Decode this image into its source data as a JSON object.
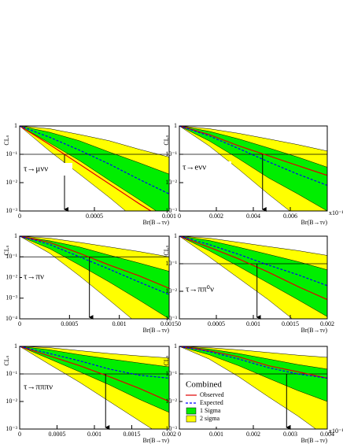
{
  "chart_data": [
    {
      "type": "line",
      "annotation": "τ→μνν",
      "xlabel": "Br(B→τν)",
      "ylabel": "CLₛ",
      "x": [
        0,
        0.0002,
        0.0004,
        0.0006,
        0.0008,
        0.001
      ],
      "xlim": [
        0,
        0.001
      ],
      "xticks": [
        0,
        0.0005,
        0.001
      ],
      "ylim": [
        0.001,
        1
      ],
      "yticks": [
        {
          "value": 0.001,
          "label": "10⁻³"
        },
        {
          "value": 0.01,
          "label": "10⁻²"
        },
        {
          "value": 0.1,
          "label": "10⁻¹"
        },
        1
      ],
      "log_y": true,
      "reference_line": 0.1,
      "limit": 0.0003,
      "bands": [
        {
          "color": "#ffff00",
          "lower": [
            1,
            0.13,
            0.02,
            0.003,
            0.0004,
            6e-05
          ],
          "upper": [
            1,
            0.8,
            0.5,
            0.3,
            0.15,
            0.08
          ]
        },
        {
          "color": "#00ee00",
          "lower": [
            1,
            0.25,
            0.06,
            0.012,
            0.0025,
            0.0005
          ],
          "upper": [
            1,
            0.6,
            0.3,
            0.12,
            0.05,
            0.02
          ]
        }
      ],
      "series": [
        {
          "color": "#e00000",
          "values": [
            1,
            0.22,
            0.045,
            0.009,
            0.0018,
            0.0004
          ]
        },
        {
          "color": "#0000ff",
          "dashed": true,
          "values": [
            1,
            0.4,
            0.14,
            0.045,
            0.013,
            0.004
          ]
        }
      ]
    },
    {
      "type": "line",
      "annotation": "τ→eνν",
      "xlabel": "Br(B→τν)",
      "ylabel": "CLₛ",
      "x_note": "x10⁻¹",
      "x": [
        0,
        0.0016,
        0.0032,
        0.0048,
        0.0064,
        0.008
      ],
      "xlim": [
        0,
        0.008
      ],
      "xticks": [
        0,
        0.002,
        0.004,
        0.006
      ],
      "ylim": [
        0.001,
        1
      ],
      "yticks": [
        {
          "value": 0.001,
          "label": "10⁻³"
        },
        {
          "value": 0.01,
          "label": "10⁻²"
        },
        {
          "value": 0.1,
          "label": "10⁻¹"
        },
        1
      ],
      "log_y": true,
      "reference_line": 0.1,
      "limit": 0.0045,
      "bands": [
        {
          "color": "#ffff00",
          "lower": [
            1,
            0.2,
            0.03,
            0.004,
            0.0006,
            0.0001
          ],
          "upper": [
            1,
            0.8,
            0.55,
            0.35,
            0.22,
            0.13
          ]
        },
        {
          "color": "#00ee00",
          "lower": [
            1,
            0.3,
            0.07,
            0.015,
            0.004,
            0.001
          ],
          "upper": [
            1,
            0.65,
            0.35,
            0.17,
            0.08,
            0.035
          ]
        }
      ],
      "series": [
        {
          "color": "#e00000",
          "values": [
            1,
            0.5,
            0.2,
            0.09,
            0.04,
            0.018
          ]
        },
        {
          "color": "#0000ff",
          "dashed": true,
          "values": [
            1,
            0.45,
            0.16,
            0.055,
            0.02,
            0.008
          ]
        }
      ]
    },
    {
      "type": "line",
      "annotation": "τ→πν",
      "xlabel": "Br(B→τν)",
      "ylabel": "CLₛ",
      "x": [
        0,
        0.0003,
        0.0006,
        0.0009,
        0.0012,
        0.0015
      ],
      "xlim": [
        0,
        0.0015
      ],
      "xticks": [
        0,
        0.0005,
        0.001,
        0.0015
      ],
      "ylim": [
        0.0001,
        1
      ],
      "yticks": [
        {
          "value": 0.0001,
          "label": "10⁻⁴"
        },
        {
          "value": 0.001,
          "label": "10⁻³"
        },
        {
          "value": 0.01,
          "label": "10⁻²"
        },
        {
          "value": 0.1,
          "label": "10⁻¹"
        },
        1
      ],
      "log_y": true,
      "reference_line": 0.1,
      "limit": 0.0007,
      "bands": [
        {
          "color": "#ffff00",
          "lower": [
            1,
            0.15,
            0.012,
            0.0008,
            5e-05,
            3e-06
          ],
          "upper": [
            1,
            0.8,
            0.5,
            0.3,
            0.18,
            0.1
          ]
        },
        {
          "color": "#00ee00",
          "lower": [
            1,
            0.25,
            0.04,
            0.006,
            0.0008,
            0.0001
          ],
          "upper": [
            1,
            0.6,
            0.3,
            0.12,
            0.05,
            0.02
          ]
        }
      ],
      "series": [
        {
          "color": "#e00000",
          "values": [
            1,
            0.5,
            0.15,
            0.04,
            0.012,
            0.003
          ]
        },
        {
          "color": "#0000ff",
          "dashed": true,
          "values": [
            1,
            0.4,
            0.1,
            0.025,
            0.006,
            0.0015
          ]
        }
      ]
    },
    {
      "type": "line",
      "annotation": "τ→ππ⁰ν",
      "xlabel": "Br(B→τν)",
      "ylabel": "CLₛ",
      "x": [
        0,
        0.0004,
        0.0008,
        0.0012,
        0.0016,
        0.002
      ],
      "xlim": [
        0,
        0.002
      ],
      "xticks": [
        0,
        0.0005,
        0.001,
        0.0015,
        0.002
      ],
      "ylim": [
        0.001,
        1
      ],
      "yticks": [
        {
          "value": 0.001,
          "label": "10⁻³"
        },
        {
          "value": 0.01,
          "label": "10⁻²"
        },
        {
          "value": 0.1,
          "label": "10⁻¹"
        },
        1
      ],
      "log_y": true,
      "reference_line": 0.1,
      "limit": 0.00105,
      "bands": [
        {
          "color": "#ffff00",
          "lower": [
            1,
            0.18,
            0.03,
            0.005,
            0.0007,
            0.0001
          ],
          "upper": [
            1,
            0.85,
            0.6,
            0.42,
            0.3,
            0.2
          ]
        },
        {
          "color": "#00ee00",
          "lower": [
            1,
            0.3,
            0.08,
            0.02,
            0.005,
            0.0012
          ],
          "upper": [
            1,
            0.7,
            0.4,
            0.22,
            0.12,
            0.06
          ]
        }
      ],
      "series": [
        {
          "color": "#e00000",
          "values": [
            1,
            0.4,
            0.15,
            0.05,
            0.015,
            0.005
          ]
        },
        {
          "color": "#0000ff",
          "dashed": true,
          "values": [
            1,
            0.5,
            0.22,
            0.09,
            0.04,
            0.016
          ]
        }
      ]
    },
    {
      "type": "line",
      "annotation": "τ→πππν",
      "xlabel": "Br(B→τν)",
      "ylabel": "CLₛ",
      "x": [
        0,
        0.0004,
        0.0008,
        0.0012,
        0.0016,
        0.002
      ],
      "xlim": [
        0,
        0.002
      ],
      "xticks": [
        0,
        0.0005,
        0.001,
        0.0015,
        0.002
      ],
      "ylim": [
        0.001,
        1
      ],
      "yticks": [
        {
          "value": 0.001,
          "label": "10⁻³"
        },
        {
          "value": 0.01,
          "label": "10⁻²"
        },
        {
          "value": 0.1,
          "label": "10⁻¹"
        },
        1
      ],
      "log_y": true,
      "reference_line": 0.1,
      "limit": 0.00115,
      "bands": [
        {
          "color": "#ffff00",
          "lower": [
            1,
            0.22,
            0.05,
            0.01,
            0.002,
            0.0004
          ],
          "upper": [
            1,
            0.9,
            0.7,
            0.55,
            0.45,
            0.38
          ]
        },
        {
          "color": "#00ee00",
          "lower": [
            1,
            0.35,
            0.12,
            0.04,
            0.012,
            0.004
          ],
          "upper": [
            1,
            0.75,
            0.5,
            0.35,
            0.25,
            0.18
          ]
        }
      ],
      "series": [
        {
          "color": "#e00000",
          "values": [
            1,
            0.45,
            0.2,
            0.08,
            0.03,
            0.01
          ]
        },
        {
          "color": "#0000ff",
          "dashed": true,
          "values": [
            1,
            0.55,
            0.3,
            0.15,
            0.09,
            0.07
          ]
        }
      ]
    },
    {
      "type": "line",
      "xlabel": "Br(B→τν)",
      "ylabel": "CLₛ",
      "x_note": "x10⁻¹",
      "legend": true,
      "legend_title": "Combined",
      "x": [
        0,
        0.0008,
        0.0016,
        0.0024,
        0.0032,
        0.004
      ],
      "xlim": [
        0,
        0.004
      ],
      "xticks": [
        0,
        0.001,
        0.002,
        0.003,
        0.004
      ],
      "ylim": [
        0.001,
        1
      ],
      "yticks": [
        {
          "value": 0.001,
          "label": "10⁻³"
        },
        {
          "value": 0.01,
          "label": "10⁻²"
        },
        {
          "value": 0.1,
          "label": "10⁻¹"
        },
        1
      ],
      "log_y": true,
      "reference_line": 0.1,
      "limit": 0.0029,
      "bands": [
        {
          "name": "2 sigma",
          "color": "#ffff00",
          "lower": [
            1,
            0.35,
            0.08,
            0.015,
            0.003,
            0.0005
          ],
          "upper": [
            1,
            0.9,
            0.75,
            0.6,
            0.48,
            0.4
          ]
        },
        {
          "name": "1 Sigma",
          "color": "#00ee00",
          "lower": [
            1,
            0.5,
            0.2,
            0.07,
            0.025,
            0.01
          ],
          "upper": [
            1,
            0.8,
            0.55,
            0.35,
            0.22,
            0.15
          ]
        }
      ],
      "series": [
        {
          "name": "Observed",
          "color": "#e00000",
          "values": [
            1,
            0.7,
            0.42,
            0.2,
            0.12,
            0.07
          ]
        },
        {
          "name": "Expected",
          "color": "#0000ff",
          "dashed": true,
          "values": [
            1,
            0.65,
            0.35,
            0.17,
            0.1,
            0.07
          ]
        }
      ]
    }
  ]
}
